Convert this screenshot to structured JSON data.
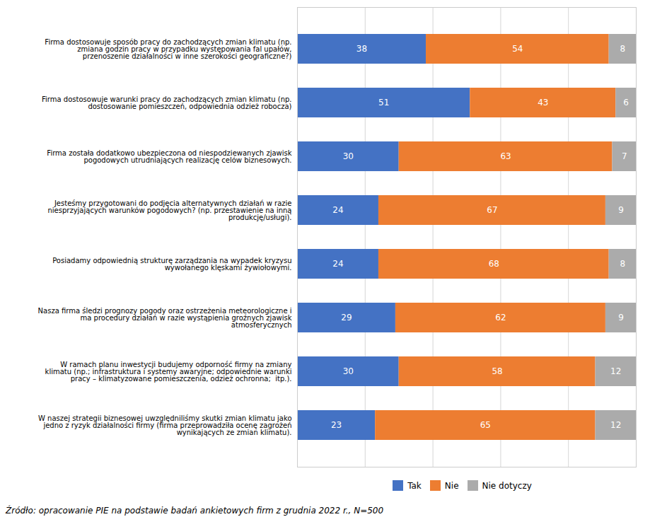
{
  "chart_data": {
    "type": "bar",
    "orientation": "horizontal",
    "stacked": true,
    "data_labels": true,
    "grid": true,
    "legend": "bottom",
    "tick_labels": "y",
    "caption": "Źródło: opracowanie PIE na podstawie badań ankietowych firm z grudnia 2022 r., N=500",
    "categories": [
      "Firma dostosowuje sposób pracy do zachodzących zmian klimatu (np.\nzmiana godzin pracy w przypadku występowania fal upałów,\nprzenoszenie działalności w inne szerokości geograficzne?)",
      "Firma dostosowuje warunki pracy do zachodzących zmian klimatu (np.\ndostosowanie pomieszczeń, odpowiednia odzież robocza)",
      "Firma została dodatkowo ubezpieczona od niespodziewanych zjawisk\npogodowych utrudniających realizację celów biznesowych.",
      "Jesteśmy przygotowani do podjęcia alternatywnych działań w razie\nniesprzyjających warunków pogodowych? (np. przestawienie na inną\nprodukcję/usługi).",
      "Posiadamy odpowiednią strukturę zarządzania na wypadek kryzysu\nwywołanego klęskami żywiołowymi.",
      "Nasza firma śledzi prognozy pogody oraz ostrzeżenia meteorologiczne i\nma procedury działań w razie wystąpienia groźnych zjawisk\natmosferycznych",
      "W ramach planu inwestycji budujemy odporność firmy na zmiany\nklimatu (np.; infrastruktura i systemy awaryjne; odpowiednie warunki\npracy – klimatyzowane pomieszczenia, odzież ochronna;  itp.).",
      "W naszej strategii biznesowej uwzględniliśmy skutki zmian klimatu jako\njedno z ryzyk działalności firmy (firma przeprowadziła ocenę zagrożeń\nwynikających ze zmian klimatu)."
    ],
    "series": [
      {
        "name": "Tak",
        "color": "#4472C4",
        "values": [
          38,
          51,
          30,
          24,
          24,
          29,
          30,
          23
        ]
      },
      {
        "name": "Nie",
        "color": "#ED7D31",
        "values": [
          54,
          43,
          63,
          67,
          68,
          62,
          58,
          65
        ]
      },
      {
        "name": "Nie dotyczy",
        "color": "#ABABAB",
        "values": [
          8,
          6,
          7,
          9,
          8,
          9,
          12,
          12
        ]
      }
    ],
    "xlim": [
      0,
      100
    ],
    "xticks": [
      20,
      40,
      60,
      80,
      100
    ]
  }
}
